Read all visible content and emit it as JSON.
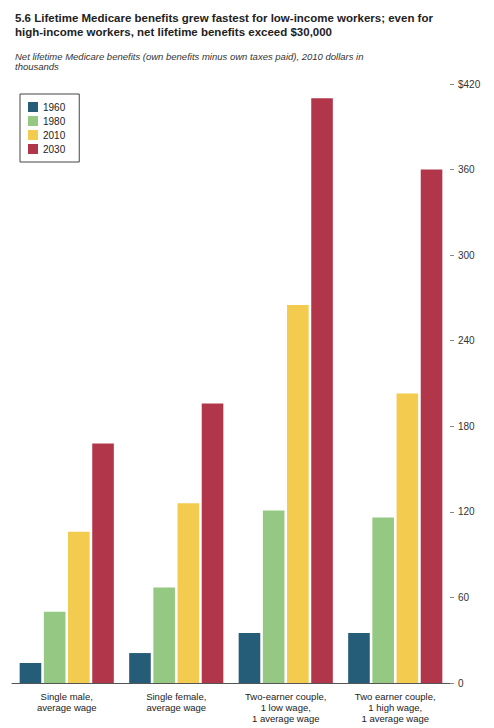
{
  "chart_data": {
    "type": "bar",
    "title": "5.6 Lifetime Medicare benefits grew fastest for low-income workers; even for high-income workers, net lifetime benefits exceed $30,000",
    "subtitle": "Net lifetime Medicare benefits (own benefits minus own taxes paid), 2010 dollars in thousands",
    "categories": [
      "Single male,\naverage wage",
      "Single female,\naverage wage",
      "Two-earner couple,\n1 low wage,\n1 average wage",
      "Two earner couple,\n1 high wage,\n1 average wage"
    ],
    "series": [
      {
        "name": "1960",
        "color": "#255d78",
        "values": [
          14,
          21,
          35,
          35
        ]
      },
      {
        "name": "1980",
        "color": "#95c983",
        "values": [
          50,
          67,
          121,
          116
        ]
      },
      {
        "name": "2010",
        "color": "#f2cb4f",
        "values": [
          106,
          126,
          265,
          203
        ]
      },
      {
        "name": "2030",
        "color": "#b2364a",
        "values": [
          168,
          196,
          410,
          360
        ]
      }
    ],
    "ylim": [
      0,
      420
    ],
    "yticks": [
      0,
      60,
      120,
      180,
      240,
      300,
      360,
      {
        "value": 420,
        "label": "$420"
      }
    ],
    "grid": false,
    "legend": "top-left"
  }
}
